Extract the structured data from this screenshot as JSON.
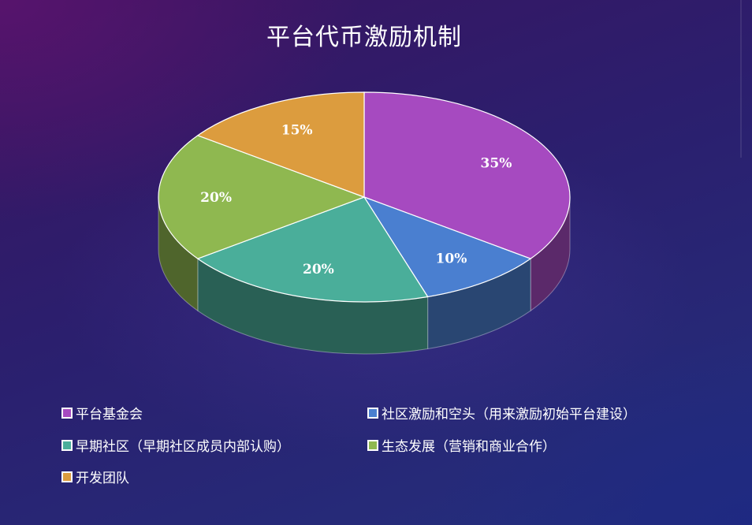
{
  "chart_data": {
    "type": "pie",
    "title": "平台代币激励机制",
    "slices": [
      {
        "label": "平台基金会",
        "value": 35,
        "display": "35%",
        "color": "#a64ac0"
      },
      {
        "label": "社区激励和空头（用来激励初始平台建设）",
        "value": 10,
        "display": "10%",
        "color": "#4a7fd0"
      },
      {
        "label": "早期社区（早期社区成员内部认购）",
        "value": 20,
        "display": "20%",
        "color": "#4aae9a"
      },
      {
        "label": "生态发展（营销和商业合作）",
        "value": 20,
        "display": "20%",
        "color": "#8fb850"
      },
      {
        "label": "开发团队",
        "value": 15,
        "display": "15%",
        "color": "#dc9c3e"
      }
    ],
    "legend_position": "bottom"
  }
}
